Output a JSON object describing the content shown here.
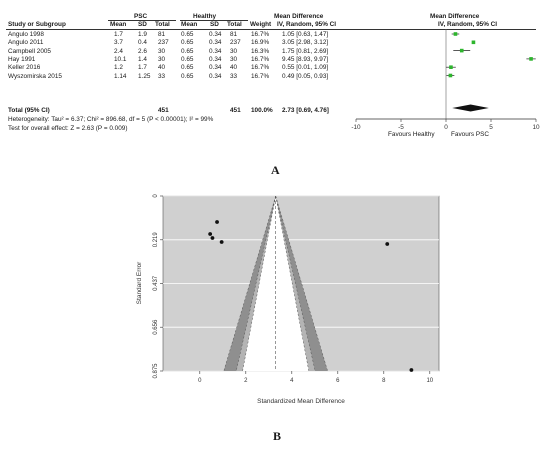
{
  "panel_a": {
    "label": "A",
    "group_headers": {
      "psc": "PSC",
      "healthy": "Healthy",
      "md": "Mean Difference",
      "md_plot": "Mean Difference"
    },
    "columns": {
      "study": "Study or Subgroup",
      "mean": "Mean",
      "sd": "SD",
      "total": "Total",
      "weight": "Weight",
      "ci": "IV, Random, 95% CI",
      "ci_plot": "IV, Random, 95% CI"
    },
    "total_row": {
      "label": "Total (95% CI)",
      "psc_total": "451",
      "healthy_total": "451",
      "weight": "100.0%",
      "ci": "2.73 [0.69, 4.76]"
    },
    "heterogeneity": "Heterogeneity: Tau² = 6.37; Chi² = 896.68, df = 5 (P < 0.00001); I² = 99%",
    "overall_effect": "Test for overall effect: Z = 2.63 (P = 0.009)",
    "axis_ticks": [
      "-10",
      "-5",
      "0",
      "5",
      "10"
    ],
    "favours_left": "Favours Healthy",
    "favours_right": "Favours PSC",
    "marker_color": "#2db52d"
  },
  "panel_b": {
    "label": "B",
    "xlabel": "Standardized Mean Difference",
    "ylabel": "Standard Error",
    "background_color": "#d0d0d0"
  },
  "chart_data": [
    {
      "type": "forest",
      "studies": [
        {
          "name": "Angulo 1998",
          "psc_mean": "1.7",
          "psc_sd": "1.9",
          "psc_total": "81",
          "h_mean": "0.65",
          "h_sd": "0.34",
          "h_total": "81",
          "weight": "16.7%",
          "ci": "1.05 [0.63, 1.47]",
          "md": 1.05,
          "lo": 0.63,
          "hi": 1.47
        },
        {
          "name": "Angulo 2011",
          "psc_mean": "3.7",
          "psc_sd": "0.4",
          "psc_total": "237",
          "h_mean": "0.65",
          "h_sd": "0.34",
          "h_total": "237",
          "weight": "16.9%",
          "ci": "3.05 [2.98, 3.12]",
          "md": 3.05,
          "lo": 2.98,
          "hi": 3.12
        },
        {
          "name": "Campbell 2005",
          "psc_mean": "2.4",
          "psc_sd": "2.6",
          "psc_total": "30",
          "h_mean": "0.65",
          "h_sd": "0.34",
          "h_total": "30",
          "weight": "16.3%",
          "ci": "1.75 [0.81, 2.69]",
          "md": 1.75,
          "lo": 0.81,
          "hi": 2.69
        },
        {
          "name": "Hay 1991",
          "psc_mean": "10.1",
          "psc_sd": "1.4",
          "psc_total": "30",
          "h_mean": "0.65",
          "h_sd": "0.34",
          "h_total": "30",
          "weight": "16.7%",
          "ci": "9.45 [8.93, 9.97]",
          "md": 9.45,
          "lo": 8.93,
          "hi": 9.97
        },
        {
          "name": "Keller 2016",
          "psc_mean": "1.2",
          "psc_sd": "1.7",
          "psc_total": "40",
          "h_mean": "0.65",
          "h_sd": "0.34",
          "h_total": "40",
          "weight": "16.7%",
          "ci": "0.55 [0.01, 1.09]",
          "md": 0.55,
          "lo": 0.01,
          "hi": 1.09
        },
        {
          "name": "Wyszomirska 2015",
          "psc_mean": "1.14",
          "psc_sd": "1.25",
          "psc_total": "33",
          "h_mean": "0.65",
          "h_sd": "0.34",
          "h_total": "33",
          "weight": "16.7%",
          "ci": "0.49 [0.05, 0.93]",
          "md": 0.49,
          "lo": 0.05,
          "hi": 0.93
        }
      ],
      "pooled": {
        "md": 2.73,
        "lo": 0.69,
        "hi": 4.76
      },
      "xlim": [
        -10,
        10
      ]
    },
    {
      "type": "scatter",
      "xlabel": "Standardized Mean Difference",
      "ylabel": "Standard Error",
      "points": [
        {
          "x": 0.75,
          "y": 0.13
        },
        {
          "x": 0.45,
          "y": 0.19
        },
        {
          "x": 0.55,
          "y": 0.21
        },
        {
          "x": 0.95,
          "y": 0.23
        },
        {
          "x": 8.15,
          "y": 0.24
        },
        {
          "x": 9.2,
          "y": 0.87
        }
      ],
      "pooled_x": 3.3,
      "xlim": [
        -1.6,
        10.4
      ],
      "ylim": [
        0,
        0.875
      ],
      "x_ticks": [
        "0",
        "2",
        "4",
        "6",
        "8",
        "10"
      ],
      "y_ticks": [
        "0",
        "0.219",
        "0.437",
        "0.656",
        "0.875"
      ],
      "grid": true
    }
  ]
}
